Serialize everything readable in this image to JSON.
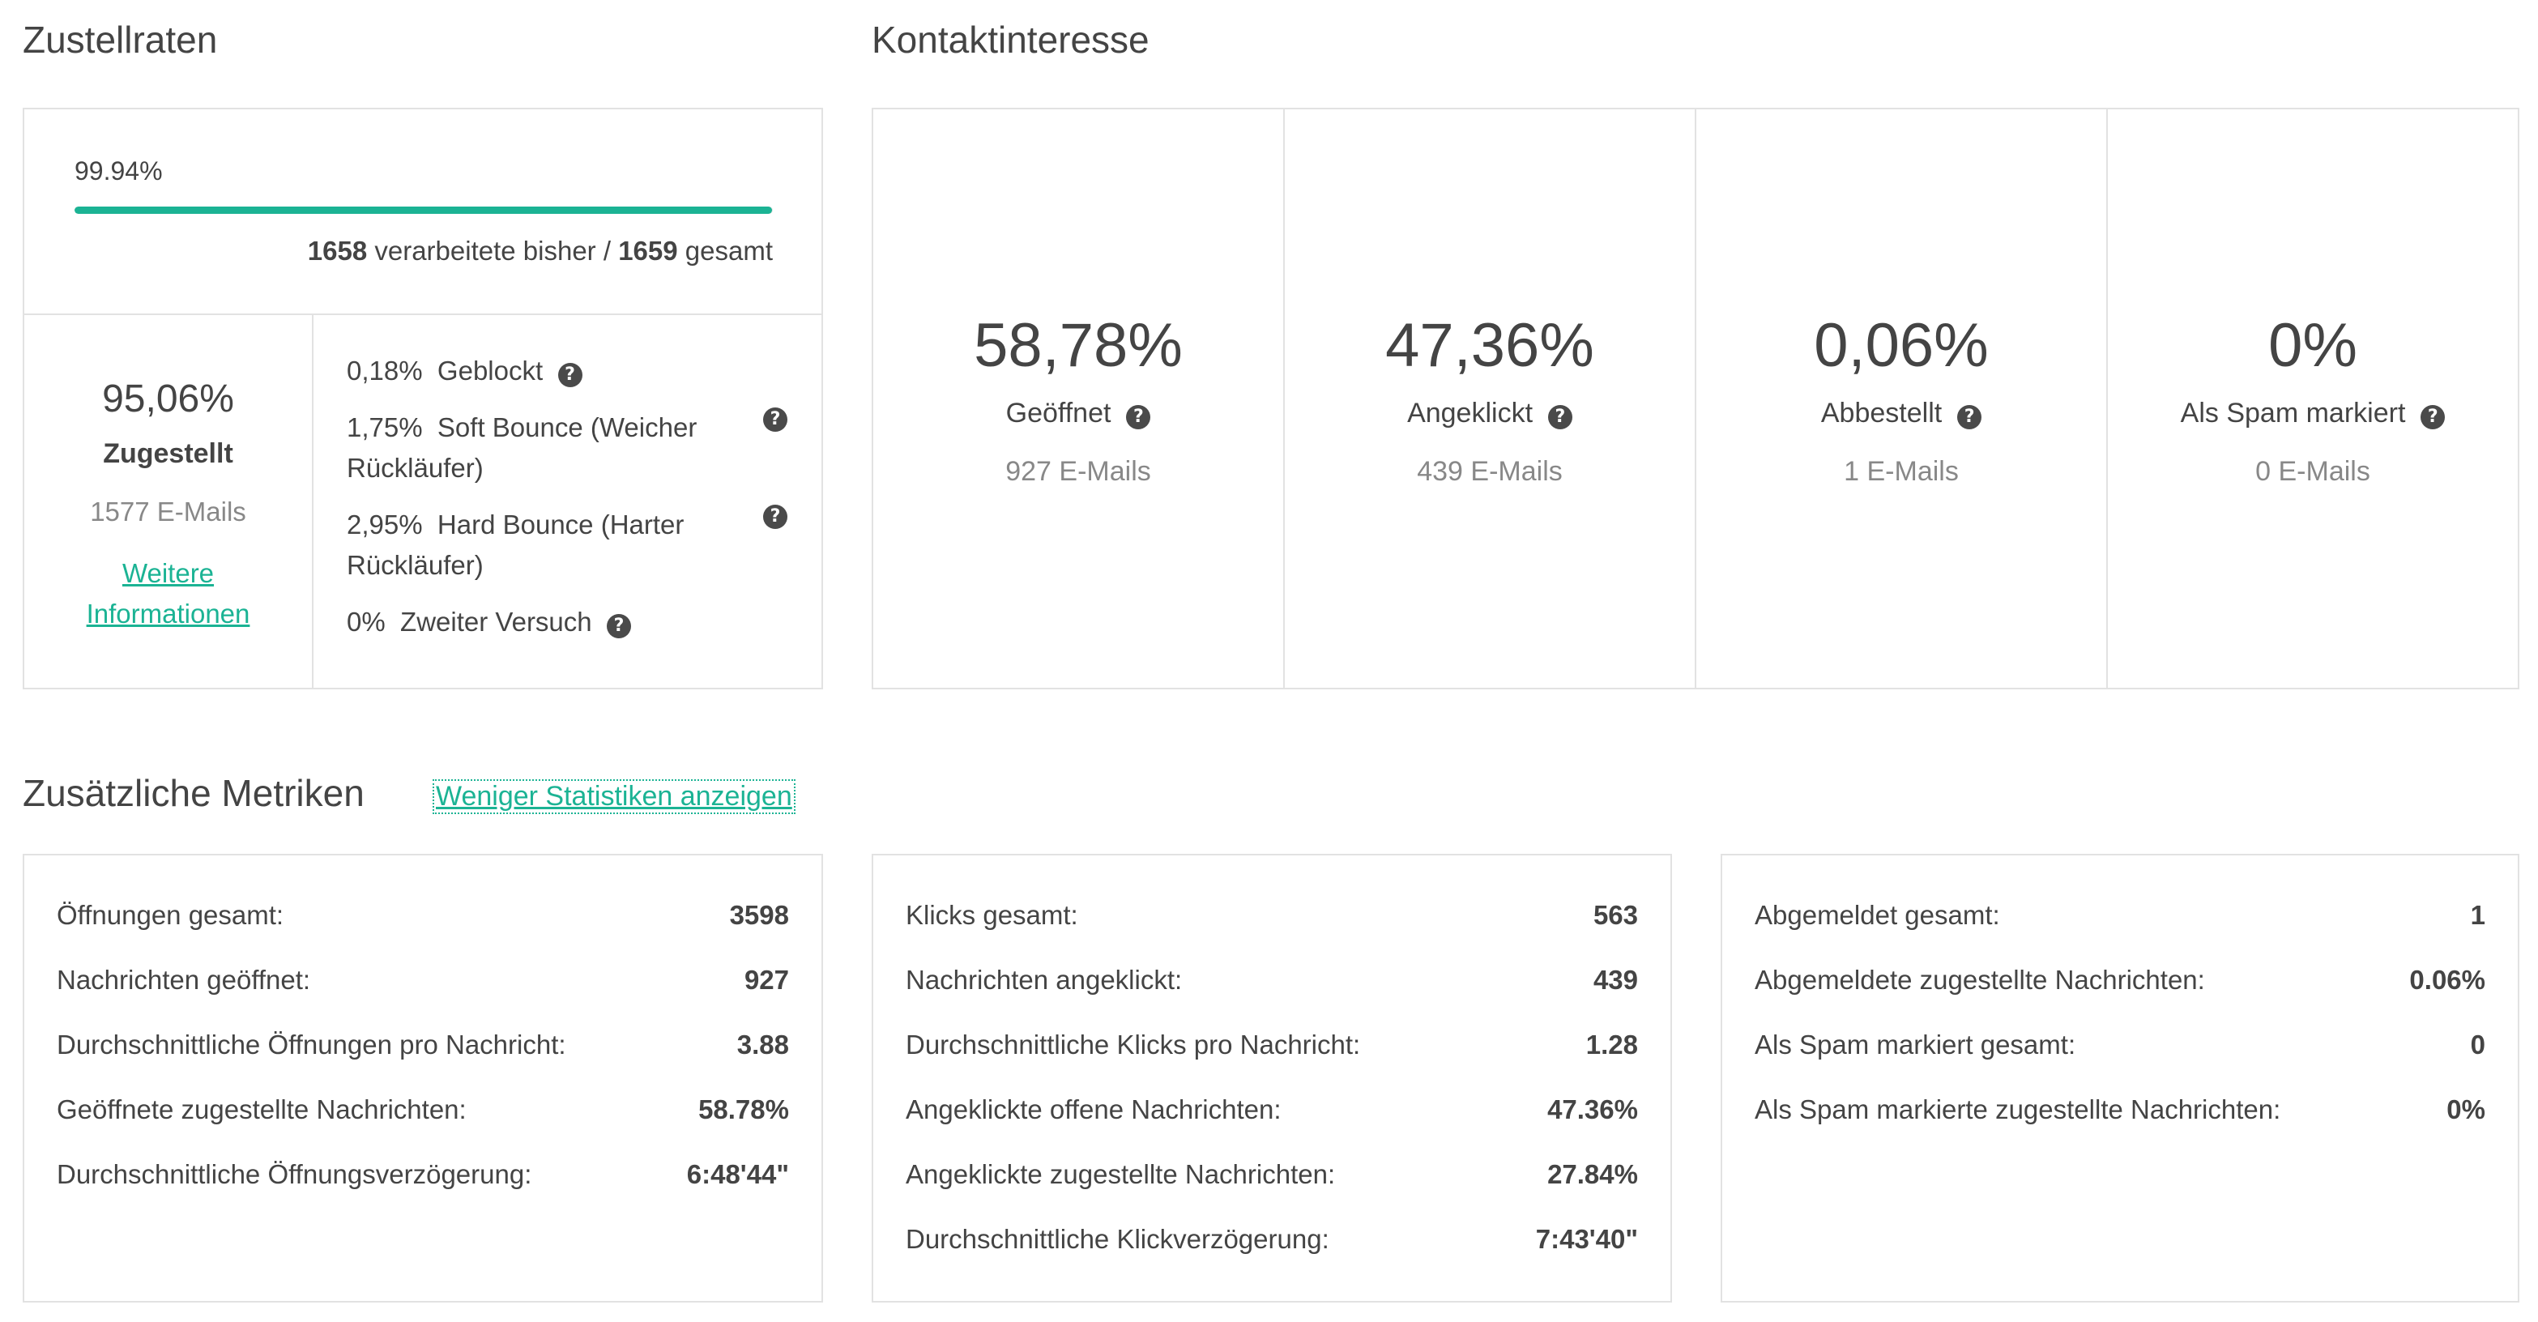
{
  "zustellraten": {
    "title": "Zustellraten",
    "progress_percent_text": "99.94%",
    "progress_fraction": 0.9994,
    "processed_count": "1658",
    "processed_text": "verarbeitete bisher /",
    "total_count": "1659",
    "total_text": "gesamt",
    "delivered": {
      "percent": "95,06%",
      "label": "Zugestellt",
      "count": "1577 E-Mails",
      "more_info_line1": "Weitere",
      "more_info_line2": "Informationen"
    },
    "bounces": [
      {
        "percent": "0,18%",
        "label_line1": "Geblockt",
        "label_line2": ""
      },
      {
        "percent": "1,75%",
        "label_line1": "Soft Bounce (Weicher",
        "label_line2": "Rückläufer)"
      },
      {
        "percent": "2,95%",
        "label_line1": "Hard Bounce (Harter",
        "label_line2": "Rückläufer)"
      },
      {
        "percent": "0%",
        "label_line1": "Zweiter Versuch",
        "label_line2": ""
      }
    ],
    "help_glyph": "?"
  },
  "kontaktinteresse": {
    "title": "Kontaktinteresse",
    "stats": [
      {
        "percent": "58,78%",
        "label": "Geöffnet",
        "count": "927 E-Mails"
      },
      {
        "percent": "47,36%",
        "label": "Angeklickt",
        "count": "439 E-Mails"
      },
      {
        "percent": "0,06%",
        "label": "Abbestellt",
        "count": "1 E-Mails"
      },
      {
        "percent": "0%",
        "label": "Als Spam markiert",
        "count": "0 E-Mails"
      }
    ]
  },
  "zusaetzliche_metriken": {
    "title": "Zusätzliche Metriken",
    "toggle_link": "Weniger Statistiken anzeigen",
    "opens": [
      {
        "label": "Öffnungen gesamt:",
        "value": "3598"
      },
      {
        "label": "Nachrichten geöffnet:",
        "value": "927"
      },
      {
        "label": "Durchschnittliche Öffnungen pro Nachricht:",
        "value": "3.88"
      },
      {
        "label": "Geöffnete zugestellte Nachrichten:",
        "value": "58.78%"
      },
      {
        "label": "Durchschnittliche Öffnungsverzögerung:",
        "value": "6:48'44\""
      }
    ],
    "clicks": [
      {
        "label": "Klicks gesamt:",
        "value": "563"
      },
      {
        "label": "Nachrichten angeklickt:",
        "value": "439"
      },
      {
        "label": "Durchschnittliche Klicks pro Nachricht:",
        "value": "1.28"
      },
      {
        "label": "Angeklickte offene Nachrichten:",
        "value": "47.36%"
      },
      {
        "label": "Angeklickte zugestellte Nachrichten:",
        "value": "27.84%"
      },
      {
        "label": "Durchschnittliche Klickverzögerung:",
        "value": "7:43'40\""
      }
    ],
    "unsubscribes": [
      {
        "label": "Abgemeldet gesamt:",
        "value": "1"
      },
      {
        "label": "Abgemeldete zugestellte Nachrichten:",
        "value": "0.06%"
      },
      {
        "label": "Als Spam markiert gesamt:",
        "value": "0"
      },
      {
        "label": "Als Spam markierte zugestellte Nachrichten:",
        "value": "0%"
      }
    ]
  }
}
